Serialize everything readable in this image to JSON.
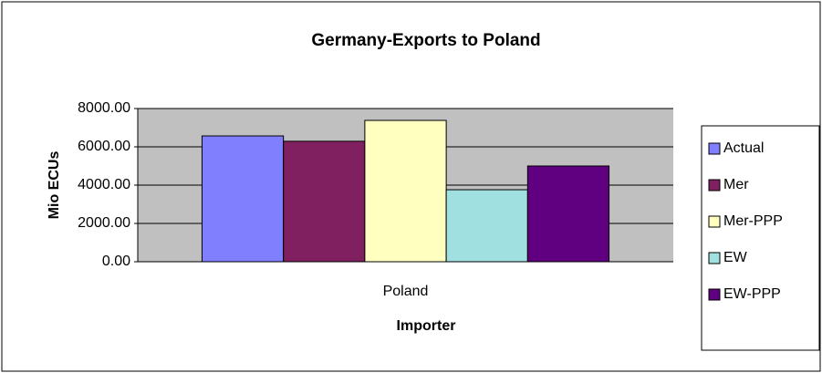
{
  "chart_data": {
    "type": "bar",
    "title": "Germany-Exports to Poland",
    "x_label": "Importer",
    "y_label": "Mio ECUs",
    "categories": [
      "Poland"
    ],
    "series": [
      {
        "name": "Actual",
        "color": "#8080ff",
        "values": [
          6570
        ]
      },
      {
        "name": "Mer",
        "color": "#802060",
        "values": [
          6290
        ]
      },
      {
        "name": "Mer-PPP",
        "color": "#ffffc0",
        "values": [
          7380
        ]
      },
      {
        "name": "EW",
        "color": "#a0e0e0",
        "values": [
          3760
        ]
      },
      {
        "name": "EW-PPP",
        "color": "#600080",
        "values": [
          5000
        ]
      }
    ],
    "ylim": [
      0,
      8000
    ],
    "yticks": [
      {
        "value": 0,
        "label": "0.00"
      },
      {
        "value": 2000,
        "label": "2000.00"
      },
      {
        "value": 4000,
        "label": "4000.00"
      },
      {
        "value": 6000,
        "label": "6000.00"
      },
      {
        "value": 8000,
        "label": "8000.00"
      }
    ],
    "grid": true,
    "legend": "right"
  }
}
